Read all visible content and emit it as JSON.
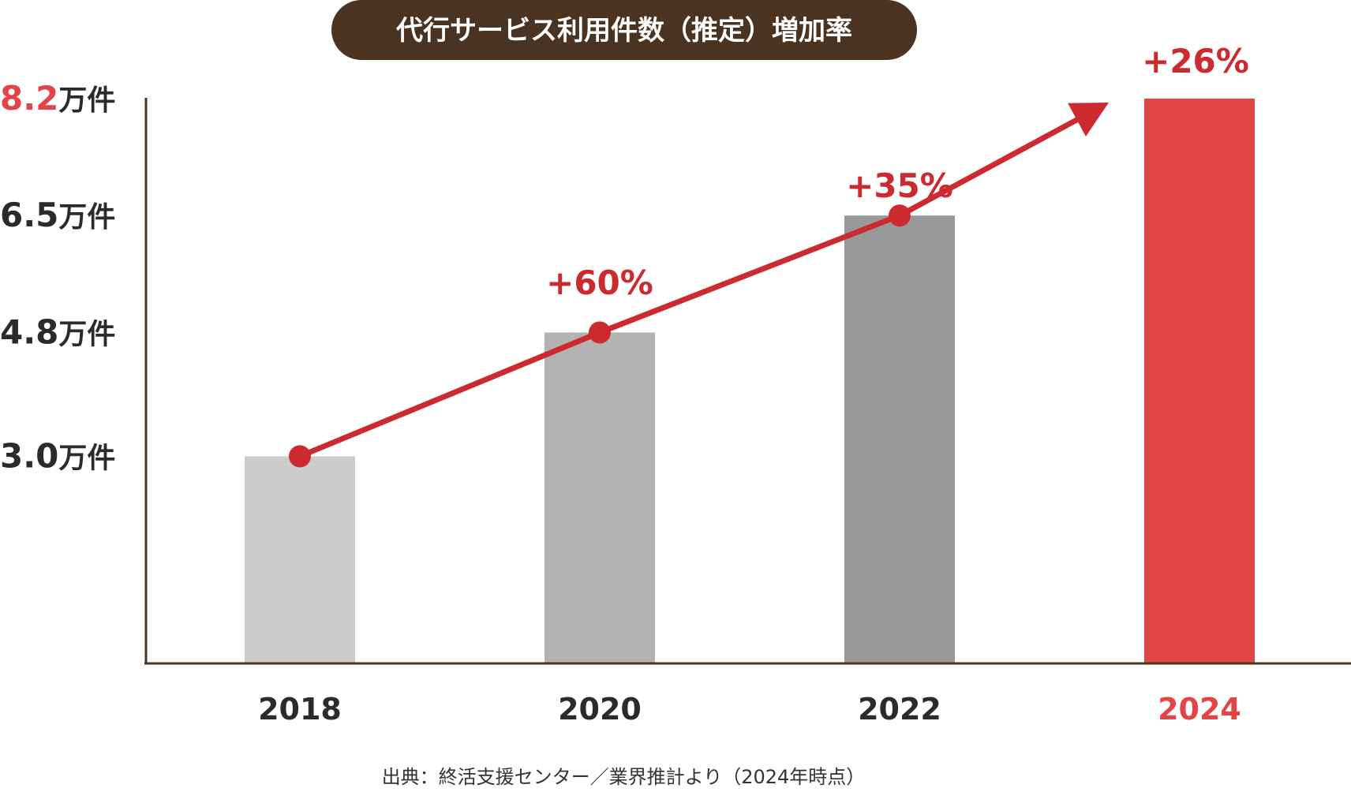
{
  "colors": {
    "title_bg": "#4a3421",
    "axis": "#4a3421",
    "highlight": "#e24545",
    "line": "#cc2a2f",
    "tick_text": "#2b2b2b",
    "bar_2018": "#cccccc",
    "bar_2020": "#b3b3b3",
    "bar_2022": "#999999",
    "bar_2024": "#e24545"
  },
  "chart_data": {
    "type": "bar",
    "title": "代行サービス利用件数（推定）増加率",
    "categories": [
      "2018",
      "2020",
      "2022",
      "2024"
    ],
    "values": [
      3.0,
      4.8,
      6.5,
      8.2
    ],
    "unit": "万件",
    "growth_labels": [
      "",
      "+60%",
      "+35%",
      "+26%"
    ],
    "yticks": [
      {
        "value": 3.0,
        "label": "3.0",
        "unit": "万件"
      },
      {
        "value": 4.8,
        "label": "4.8",
        "unit": "万件"
      },
      {
        "value": 6.5,
        "label": "6.5",
        "unit": "万件"
      },
      {
        "value": 8.2,
        "label": "8.2",
        "unit": "万件"
      }
    ],
    "highlight_category": "2024",
    "ylim": [
      0,
      8.2
    ],
    "trend_line": true,
    "grid": false,
    "source": "出典：終活支援センター／業界推計より（2024年時点）"
  }
}
